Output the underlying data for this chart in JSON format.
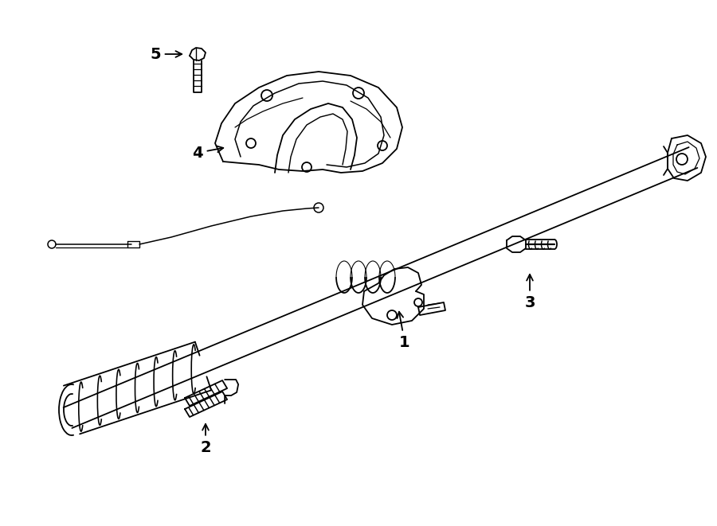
{
  "bg_color": "#ffffff",
  "line_color": "#000000",
  "lw": 1.3,
  "font_size": 14,
  "figsize": [
    9.0,
    6.61
  ],
  "dpi": 100
}
